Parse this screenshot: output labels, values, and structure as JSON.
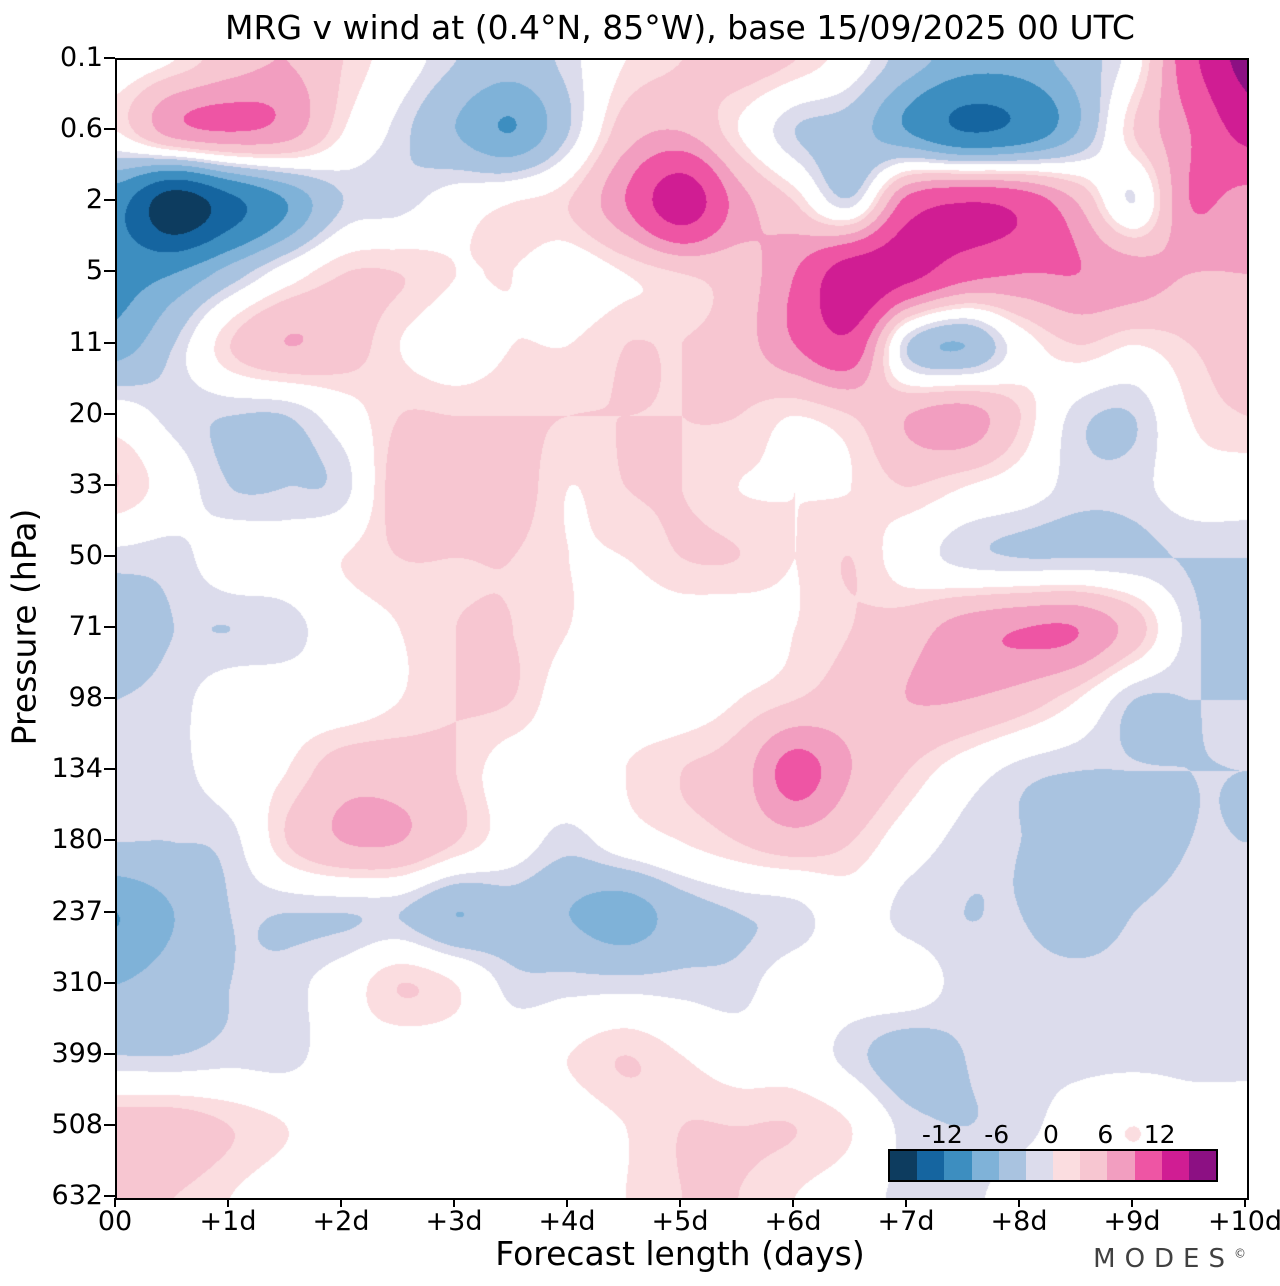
{
  "title": "MRG v wind at (0.4°N, 85°W),  base 15/09/2025  00 UTC",
  "axes": {
    "x_label": "Forecast length (days)",
    "y_label": "Pressure (hPa)",
    "x_ticks": [
      "00",
      "+1d",
      "+2d",
      "+3d",
      "+4d",
      "+5d",
      "+6d",
      "+7d",
      "+8d",
      "+9d",
      "+10d"
    ],
    "y_ticks": [
      "0.1",
      "0.6",
      "2",
      "5",
      "11",
      "20",
      "33",
      "50",
      "71",
      "98",
      "134",
      "180",
      "237",
      "310",
      "399",
      "508",
      "632"
    ]
  },
  "colorbar": {
    "tick_labels": [
      "-12",
      "-6",
      "0",
      "6",
      "12"
    ],
    "tick_values": [
      -12,
      -6,
      0,
      6,
      12
    ],
    "range": [
      -18,
      18
    ],
    "colors": [
      "#0d3c5f",
      "#1565a0",
      "#3d8ec0",
      "#7fb2d8",
      "#a9c3e0",
      "#dcdcec",
      "#fbdde0",
      "#f7c6d1",
      "#f29ec0",
      "#ee55a4",
      "#d01d93",
      "#8c1083"
    ]
  },
  "footer": {
    "brand": "MODES",
    "mark": "©"
  },
  "chart_data": {
    "type": "heatmap",
    "title": "MRG v wind at (0.4°N, 85°W), base 15/09/2025 00 UTC",
    "variable": "MRG v wind",
    "location": "0.4°N, 85°W",
    "base_time": "15/09/2025 00 UTC",
    "xlabel": "Forecast length (days)",
    "ylabel": "Pressure (hPa)",
    "x_days": [
      0,
      0.5,
      1,
      1.5,
      2,
      2.5,
      3,
      3.5,
      4,
      4.5,
      5,
      5.5,
      6,
      6.5,
      7,
      7.5,
      8,
      8.5,
      9,
      9.5,
      10
    ],
    "pressure_levels_hPa": [
      0.1,
      0.6,
      2,
      5,
      11,
      20,
      33,
      50,
      71,
      98,
      134,
      180,
      237,
      310,
      399,
      508,
      632
    ],
    "levels": [
      -12,
      -9,
      -6,
      -4,
      -2,
      -1,
      1,
      2,
      4,
      6,
      9,
      12
    ],
    "level_colors": [
      "#0d3c5f",
      "#1565a0",
      "#3d8ec0",
      "#7fb2d8",
      "#a9c3e0",
      "#dcdcec",
      "#ffffff",
      "#fbdde0",
      "#f7c6d1",
      "#f29ec0",
      "#ee55a4",
      "#d01d93",
      "#8c1083"
    ],
    "values": [
      [
        0,
        1,
        3,
        4,
        2,
        0,
        -2,
        -3,
        -1.5,
        1,
        2,
        3,
        2,
        0,
        -3,
        -5,
        -5,
        -3,
        0,
        8,
        13
      ],
      [
        1,
        5,
        6,
        5,
        1,
        -1.5,
        -4,
        -6,
        -2,
        3,
        4,
        1,
        -2,
        -3,
        -6,
        -9,
        -8,
        -4,
        2,
        6,
        10
      ],
      [
        -8,
        -14,
        -10,
        -6,
        -2,
        -1.5,
        0,
        1,
        2,
        6,
        11,
        5,
        2,
        -1.5,
        7,
        9,
        8,
        4,
        -1,
        6,
        5
      ],
      [
        -7,
        -6,
        -3,
        0,
        2,
        2,
        1,
        1,
        0,
        1,
        2,
        3,
        6,
        11,
        10,
        7,
        6,
        6,
        5,
        4,
        4
      ],
      [
        -5,
        -2,
        2,
        4,
        3,
        1,
        0,
        1,
        1,
        2,
        2,
        3,
        6,
        8,
        -2,
        -4,
        0,
        2,
        1,
        2,
        3
      ],
      [
        0,
        -1.5,
        -2,
        -2,
        0,
        2,
        2,
        2,
        2,
        2,
        2,
        2,
        1,
        2,
        4,
        5,
        2,
        -1.5,
        -2,
        1,
        2
      ],
      [
        2,
        0,
        -2,
        -2,
        -1.5,
        3,
        4,
        3,
        1,
        2,
        2,
        1,
        1,
        1,
        2,
        1,
        0,
        -1.5,
        -1.5,
        0,
        0
      ],
      [
        -1.5,
        -1.5,
        0,
        0,
        1,
        2,
        2,
        2,
        1,
        1,
        2,
        2,
        1,
        2,
        0,
        -1.5,
        -2,
        -2,
        -2,
        -2,
        -2
      ],
      [
        -3,
        -2,
        -2,
        -1.5,
        0,
        1,
        2,
        2,
        1,
        0,
        0,
        0,
        1,
        2,
        3,
        5,
        6,
        6,
        3,
        -1.5,
        -3
      ],
      [
        -2,
        -1.5,
        0,
        0,
        0,
        1,
        2,
        2,
        0,
        0,
        0,
        1,
        2,
        3,
        4,
        4,
        3,
        1,
        -2,
        -2,
        -2
      ],
      [
        -2,
        -1.5,
        0,
        1,
        3,
        3,
        2,
        0,
        0,
        1,
        2,
        3,
        7,
        4,
        2,
        0,
        -1.5,
        -2,
        -2,
        -2,
        -2
      ],
      [
        -2,
        -2,
        -1.5,
        2,
        4,
        4,
        2,
        0,
        -1.5,
        0,
        1,
        2,
        3,
        2,
        0,
        -1.5,
        -2,
        -3,
        -3,
        -2,
        -2
      ],
      [
        -6,
        -4,
        -2,
        -2,
        -2,
        -2,
        -4,
        -3,
        -4,
        -5,
        -3,
        -2,
        -1.5,
        0,
        -1.5,
        -2,
        -2,
        -3,
        -2,
        -1.5,
        -1.5
      ],
      [
        -4,
        -3,
        -2,
        -1.5,
        0,
        2,
        1,
        -1.5,
        -1.5,
        -1.5,
        -1.5,
        -1.5,
        0,
        0,
        0,
        -1.5,
        -1.5,
        -1.5,
        -1.5,
        -1.5,
        -1.5
      ],
      [
        -2,
        -2,
        -1.5,
        -1.5,
        0,
        0,
        0,
        0,
        1,
        2,
        1,
        0,
        0,
        -1.5,
        -3,
        -2,
        -1.5,
        -1.5,
        -1.5,
        -1.5,
        -1.5
      ],
      [
        3,
        3,
        2,
        1,
        0,
        0,
        0,
        0,
        0,
        1,
        2,
        2,
        2,
        1,
        -1.5,
        -2,
        -1.5,
        0,
        1,
        0,
        0
      ],
      [
        2,
        2,
        1,
        0,
        0,
        0,
        0,
        0,
        0,
        1,
        2,
        2,
        1,
        0,
        -1.5,
        -1.5,
        0,
        0,
        0,
        0,
        0
      ]
    ]
  }
}
